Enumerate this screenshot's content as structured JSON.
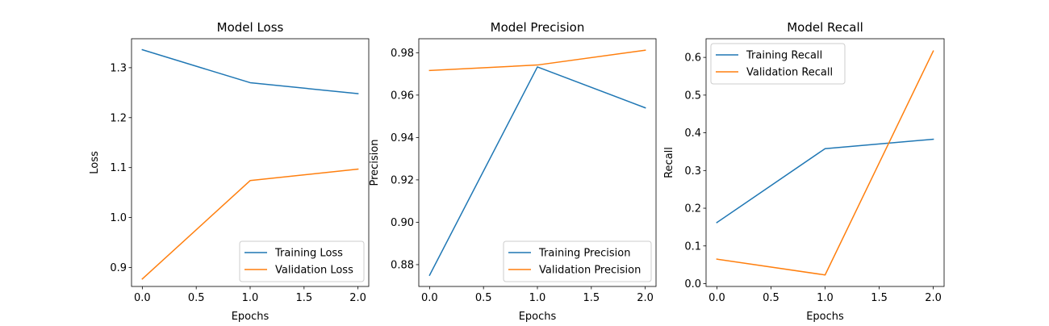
{
  "chart_data": [
    {
      "type": "line",
      "title": "Model Loss",
      "xlabel": "Epochs",
      "ylabel": "Loss",
      "x": [
        0,
        1,
        2
      ],
      "xlim": [
        -0.1,
        2.1
      ],
      "ylim": [
        0.862,
        1.358
      ],
      "xticks": [
        0.0,
        0.5,
        1.0,
        1.5,
        2.0
      ],
      "xtick_labels": [
        "0.0",
        "0.5",
        "1.0",
        "1.5",
        "2.0"
      ],
      "yticks": [
        0.9,
        1.0,
        1.1,
        1.2,
        1.3
      ],
      "ytick_labels": [
        "0.9",
        "1.0",
        "1.1",
        "1.2",
        "1.3"
      ],
      "legend_position": "lower-right",
      "grid": false,
      "series": [
        {
          "name": "Training Loss",
          "color": "#1f77b4",
          "values": [
            1.336,
            1.27,
            1.248
          ]
        },
        {
          "name": "Validation Loss",
          "color": "#ff7f0e",
          "values": [
            0.877,
            1.074,
            1.097
          ]
        }
      ]
    },
    {
      "type": "line",
      "title": "Model Precision",
      "xlabel": "Epochs",
      "ylabel": "Precision",
      "x": [
        0,
        1,
        2
      ],
      "xlim": [
        -0.1,
        2.1
      ],
      "ylim": [
        0.8697,
        0.9866
      ],
      "xticks": [
        0.0,
        0.5,
        1.0,
        1.5,
        2.0
      ],
      "xtick_labels": [
        "0.0",
        "0.5",
        "1.0",
        "1.5",
        "2.0"
      ],
      "yticks": [
        0.88,
        0.9,
        0.92,
        0.94,
        0.96,
        0.98
      ],
      "ytick_labels": [
        "0.88",
        "0.90",
        "0.92",
        "0.94",
        "0.96",
        "0.98"
      ],
      "legend_position": "lower-right",
      "grid": false,
      "series": [
        {
          "name": "Training Precision",
          "color": "#1f77b4",
          "values": [
            0.875,
            0.9733,
            0.954
          ]
        },
        {
          "name": "Validation Precision",
          "color": "#ff7f0e",
          "values": [
            0.9716,
            0.9742,
            0.9812
          ]
        }
      ]
    },
    {
      "type": "line",
      "title": "Model Recall",
      "xlabel": "Epochs",
      "ylabel": "Recall",
      "x": [
        0,
        1,
        2
      ],
      "xlim": [
        -0.1,
        2.1
      ],
      "ylim": [
        -0.0075,
        0.6495
      ],
      "xticks": [
        0.0,
        0.5,
        1.0,
        1.5,
        2.0
      ],
      "xtick_labels": [
        "0.0",
        "0.5",
        "1.0",
        "1.5",
        "2.0"
      ],
      "yticks": [
        0.0,
        0.1,
        0.2,
        0.3,
        0.4,
        0.5,
        0.6
      ],
      "ytick_labels": [
        "0.0",
        "0.1",
        "0.2",
        "0.3",
        "0.4",
        "0.5",
        "0.6"
      ],
      "legend_position": "upper-left",
      "grid": false,
      "series": [
        {
          "name": "Training Recall",
          "color": "#1f77b4",
          "values": [
            0.162,
            0.358,
            0.383
          ]
        },
        {
          "name": "Validation Recall",
          "color": "#ff7f0e",
          "values": [
            0.065,
            0.023,
            0.617
          ]
        }
      ]
    }
  ]
}
